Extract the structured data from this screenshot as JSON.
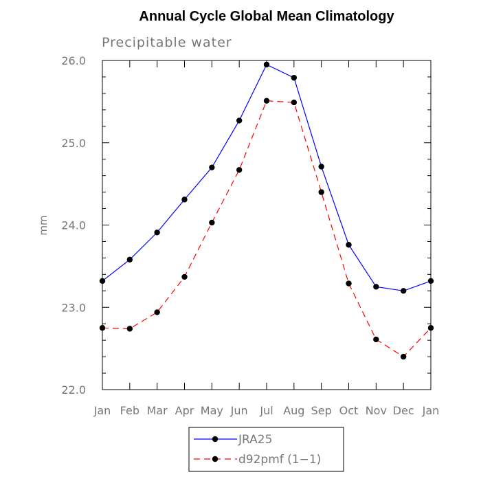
{
  "chart_data": {
    "type": "line",
    "title": "Annual Cycle Global Mean Climatology",
    "subtitle": "Precipitable water",
    "ylabel": "mm",
    "xlabel": "",
    "categories": [
      "Jan",
      "Feb",
      "Mar",
      "Apr",
      "May",
      "Jun",
      "Jul",
      "Aug",
      "Sep",
      "Oct",
      "Nov",
      "Dec",
      "Jan"
    ],
    "ylim": [
      22.0,
      26.0
    ],
    "yticks": [
      "22.0",
      "23.0",
      "24.0",
      "25.0",
      "26.0"
    ],
    "grid": false,
    "legend_position": "bottom",
    "series": [
      {
        "name": "JRA25",
        "color": "#0000ff",
        "dash": "solid",
        "marker": "filled-circle",
        "values": [
          23.32,
          23.58,
          23.91,
          24.31,
          24.7,
          25.27,
          25.95,
          25.79,
          24.71,
          23.76,
          23.25,
          23.2,
          23.32
        ]
      },
      {
        "name": "d92pmf (1−1)",
        "color": "#ff0000",
        "dash": "dashed",
        "marker": "filled-circle",
        "values": [
          22.75,
          22.74,
          22.94,
          23.37,
          24.03,
          24.67,
          25.51,
          25.49,
          24.4,
          23.29,
          22.61,
          22.4,
          22.75
        ]
      }
    ]
  }
}
